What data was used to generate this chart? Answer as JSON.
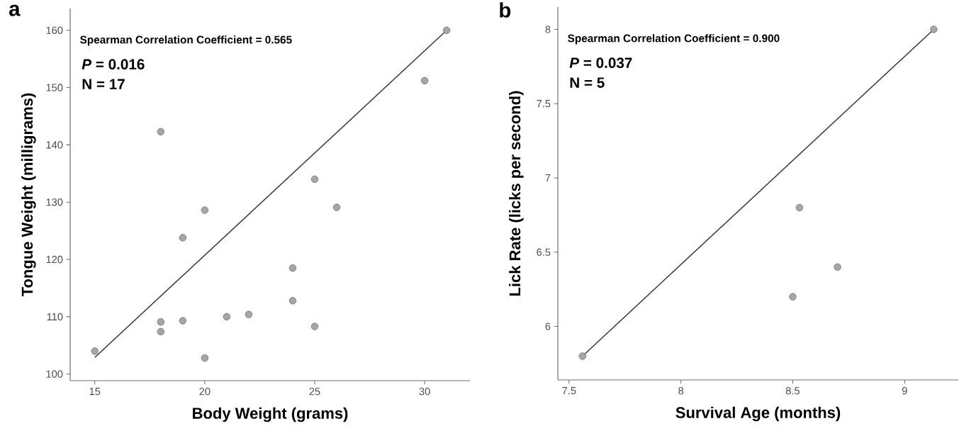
{
  "chart_data": [
    {
      "type": "scatter",
      "title": "a",
      "xlabel": "Body Weight (grams)",
      "ylabel": "Tongue Weight (milligrams)",
      "annotations": [
        "Spearman Correlation Coefficient = 0.565",
        "*P* = 0.016",
        "N = 17"
      ],
      "xlim": [
        13.88,
        32.06
      ],
      "ylim": [
        98.85,
        163.8
      ],
      "xticks": [
        15,
        20,
        25,
        30
      ],
      "yticks": [
        100,
        110,
        120,
        130,
        140,
        150,
        160
      ],
      "series": [
        {
          "color": "#a6a6a6",
          "marker": "circle",
          "x": [
            15,
            18,
            18,
            18,
            19,
            19,
            20,
            20,
            21,
            22,
            24,
            24,
            25,
            25,
            26,
            30,
            31
          ],
          "values": [
            104.0,
            142.3,
            109.1,
            107.4,
            123.8,
            109.3,
            128.6,
            102.8,
            110.0,
            110.4,
            118.5,
            112.8,
            134.0,
            108.3,
            129.1,
            151.2,
            160.0
          ]
        },
        {
          "type": "line",
          "color": "#333333",
          "x": [
            15,
            31
          ],
          "values": [
            102.9,
            160.0
          ]
        }
      ]
    },
    {
      "type": "scatter",
      "title": "b",
      "xlabel": "Survival Age (months)",
      "ylabel": "Lick Rate (licks per second)",
      "annotations": [
        "Spearman Correlation Coefficient = 0.900",
        "*P* = 0.037",
        "N = 5"
      ],
      "xlim": [
        7.45,
        9.24
      ],
      "ylim": [
        5.64,
        8.15
      ],
      "xticks": [
        7.5,
        8,
        8.5,
        9
      ],
      "yticks": [
        6,
        6.5,
        7,
        7.5,
        8
      ],
      "series": [
        {
          "color": "#a6a6a6",
          "marker": "circle",
          "x": [
            7.56,
            8.53,
            8.7,
            8.5,
            9.13
          ],
          "values": [
            5.8,
            6.8,
            6.4,
            6.2,
            8.0
          ]
        },
        {
          "type": "line",
          "color": "#333333",
          "x": [
            7.56,
            9.13
          ],
          "values": [
            5.8,
            8.0
          ]
        }
      ]
    }
  ]
}
